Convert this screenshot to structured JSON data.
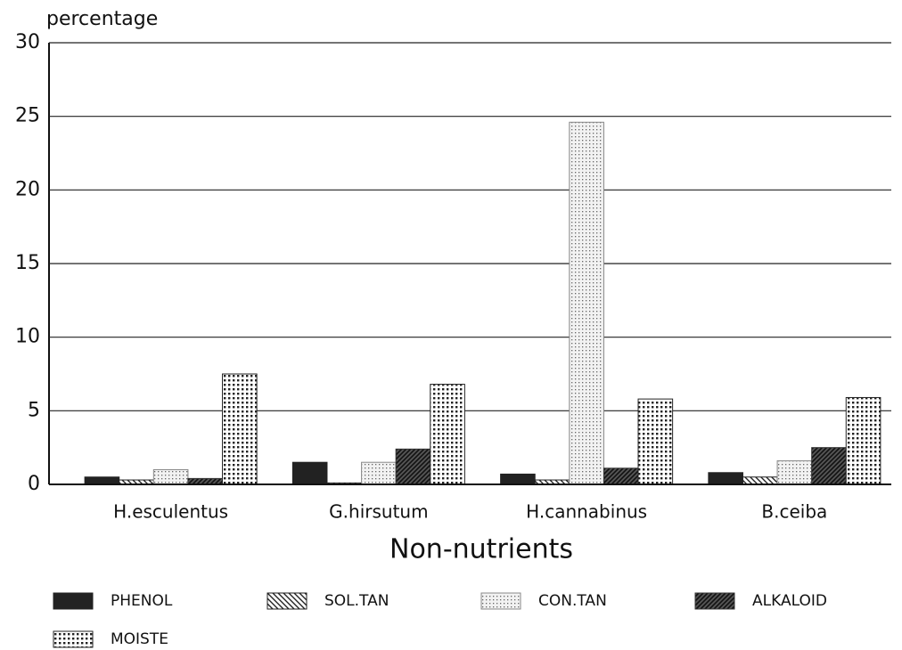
{
  "chart_data": {
    "type": "bar",
    "y_label": "percentage",
    "x_label": "Non-nutrients",
    "categories": [
      "H.esculentus",
      "G.hirsutum",
      "H.cannabinus",
      "B.ceiba"
    ],
    "series": [
      {
        "name": "PHENOL",
        "color": "#222222",
        "pattern": "solid",
        "values": [
          0.5,
          1.5,
          0.7,
          0.8
        ]
      },
      {
        "name": "SOL.TAN",
        "color": "#222222",
        "pattern": "hatch",
        "values": [
          0.3,
          0.1,
          0.3,
          0.5
        ]
      },
      {
        "name": "CON.TAN",
        "color": "#888888",
        "pattern": "dots",
        "values": [
          1.0,
          1.5,
          24.6,
          1.6
        ]
      },
      {
        "name": "ALKALOID",
        "color": "#333333",
        "pattern": "dark-hatch",
        "values": [
          0.4,
          2.4,
          1.1,
          2.5
        ]
      },
      {
        "name": "MOISTE",
        "color": "#222222",
        "pattern": "grid",
        "values": [
          7.5,
          6.8,
          5.8,
          5.9
        ]
      }
    ],
    "ylim": [
      0,
      30
    ],
    "yticks": [
      0,
      5,
      10,
      15,
      20,
      25,
      30
    ],
    "grid": true
  }
}
